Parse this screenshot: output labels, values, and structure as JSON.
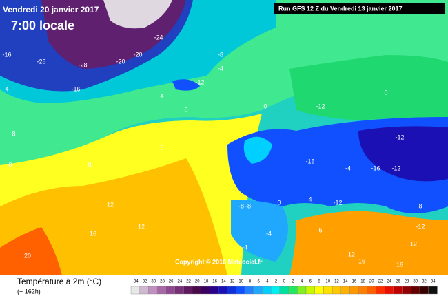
{
  "header": {
    "title": "Vendredi 20 janvier 2017",
    "time": "7:00 locale",
    "run": "Run GFS 12 Z du Vendredi 13 janvier 2017"
  },
  "copyright": "Copyright © 2016 Meteociel.fr",
  "legend": {
    "title": "Température à 2m (°C)",
    "lead": "(+ 162h)",
    "values": [
      -34,
      -32,
      -30,
      -28,
      -26,
      -24,
      -22,
      -20,
      -18,
      -16,
      -14,
      -12,
      -10,
      -8,
      -6,
      -4,
      -2,
      0,
      2,
      4,
      6,
      8,
      10,
      12,
      14,
      16,
      18,
      20,
      22,
      24,
      26,
      28,
      30,
      32,
      34
    ],
    "colors": [
      "#e8e8e8",
      "#d0b8d0",
      "#c090c0",
      "#a868a8",
      "#904890",
      "#783078",
      "#601860",
      "#4a0a4a",
      "#3a0060",
      "#28008c",
      "#1a10b4",
      "#1030d8",
      "#1050ff",
      "#2080ff",
      "#20a8ff",
      "#00d0ff",
      "#00f0f0",
      "#00e0a0",
      "#20e860",
      "#80f020",
      "#c8f800",
      "#ffff00",
      "#ffe000",
      "#ffc800",
      "#ffb000",
      "#ff9800",
      "#ff8000",
      "#ff6000",
      "#ff3000",
      "#e81000",
      "#c00000",
      "#900000",
      "#600000",
      "#380000",
      "#101010"
    ]
  },
  "map": {
    "labels": [
      "-16",
      "-28",
      "-24",
      "-20",
      "-12",
      "-28",
      "-20",
      "-16",
      "-8",
      "-4",
      "-12",
      "0",
      "4",
      "8",
      "-16",
      "-12",
      "-4",
      "0",
      "8",
      "0",
      "-8",
      "-12",
      "-12",
      "-16",
      "-12",
      "-4",
      "0",
      "4",
      "6",
      "8",
      "12",
      "12",
      "12",
      "16",
      "16",
      "20",
      "-8",
      "-4",
      "0",
      "12",
      "16",
      "4",
      "8"
    ]
  }
}
